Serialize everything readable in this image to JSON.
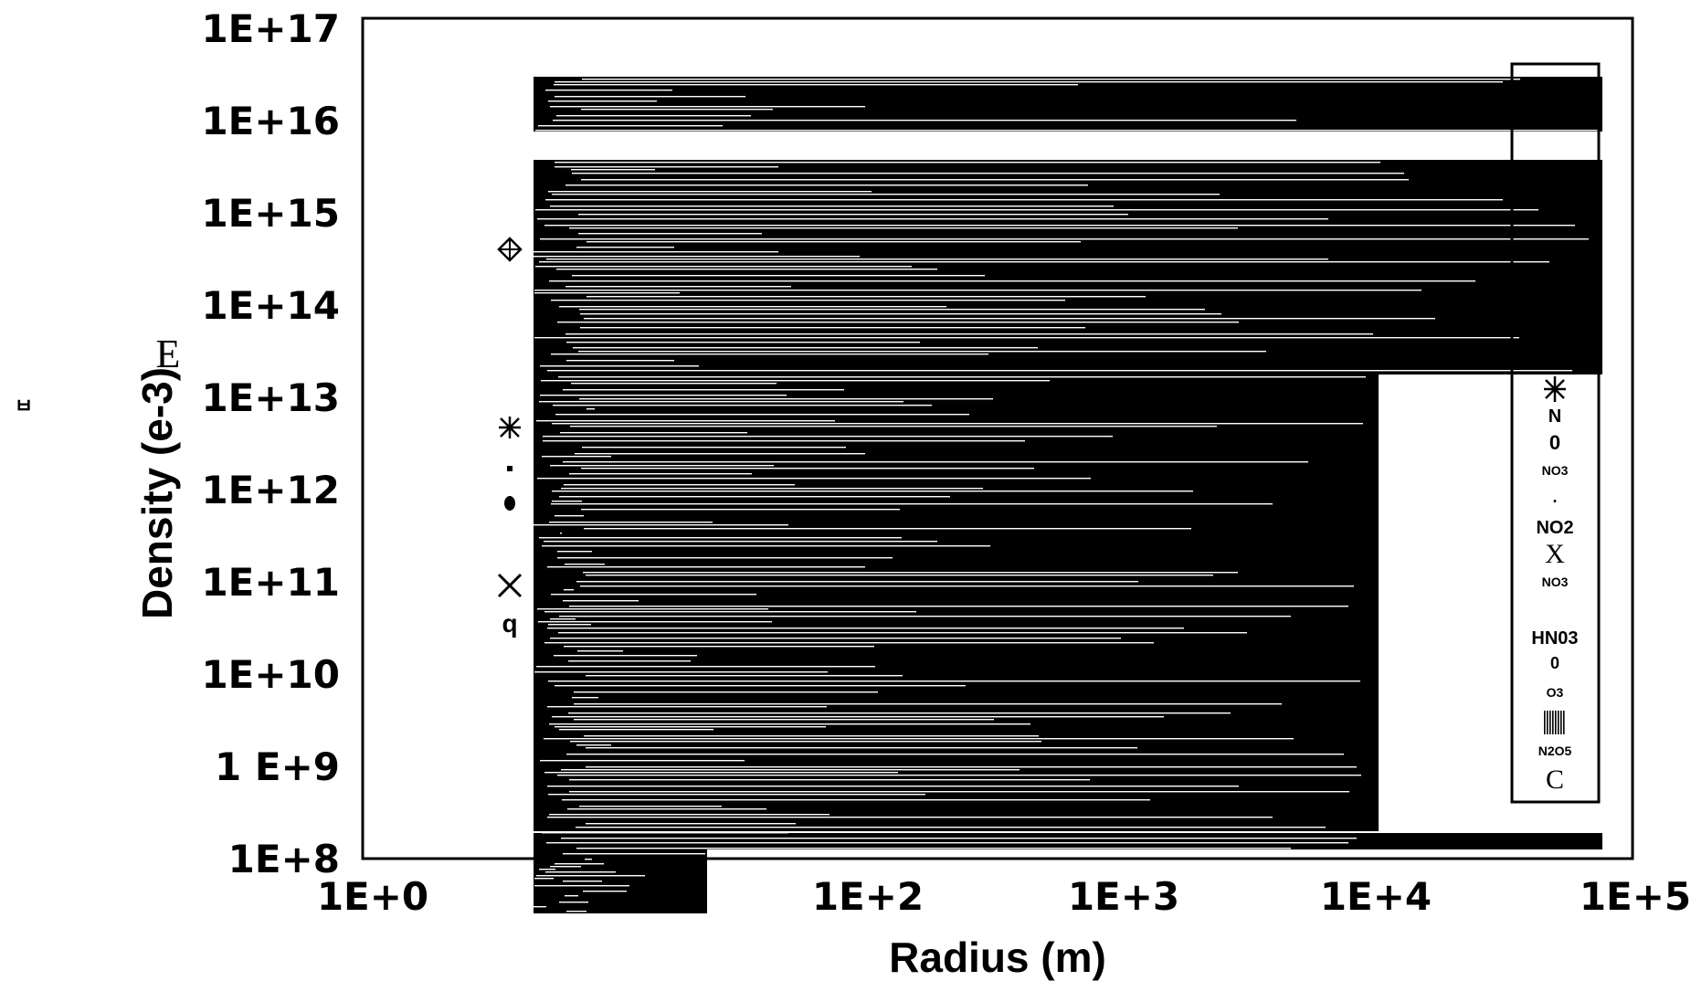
{
  "chart_data": {
    "type": "line",
    "xlabel": "Radius (m)",
    "ylabel": "Density (e-3)",
    "x_scale": "log",
    "y_scale": "log",
    "xlim": [
      1,
      100000
    ],
    "ylim": [
      100000000,
      100000000000000000
    ],
    "x_tick_values": [
      1,
      100,
      1000,
      10000,
      100000
    ],
    "x_tick_labels": [
      "1E+0",
      "1E+2",
      "1E+3",
      "1E+4",
      "1E+5"
    ],
    "y_tick_values": [
      1e+17,
      1e+16,
      1000000000000000.0,
      100000000000000.0,
      10000000000000.0,
      1000000000000.0,
      100000000000.0,
      10000000000.0,
      1000000000.0,
      100000000.0
    ],
    "y_tick_labels": [
      "1E+17",
      "1E+16",
      "1E+15",
      "1E+14",
      "1E+13",
      "1E+12",
      "1E+11",
      "1E+10",
      "1 E+9",
      "1E+8"
    ],
    "grid": false,
    "legend_placement": "right",
    "stray_labels": {
      "left_e": "E",
      "left_q": "q",
      "far_left_glyph": "ㅂ"
    },
    "legend_entries": [
      "N",
      "0",
      "NO3",
      ".",
      "NO2",
      "X",
      "NO3",
      "HN03",
      "0",
      "O3",
      "N2O5",
      "C"
    ],
    "colors": {
      "ink": "#000000",
      "paper": "#ffffff"
    }
  }
}
